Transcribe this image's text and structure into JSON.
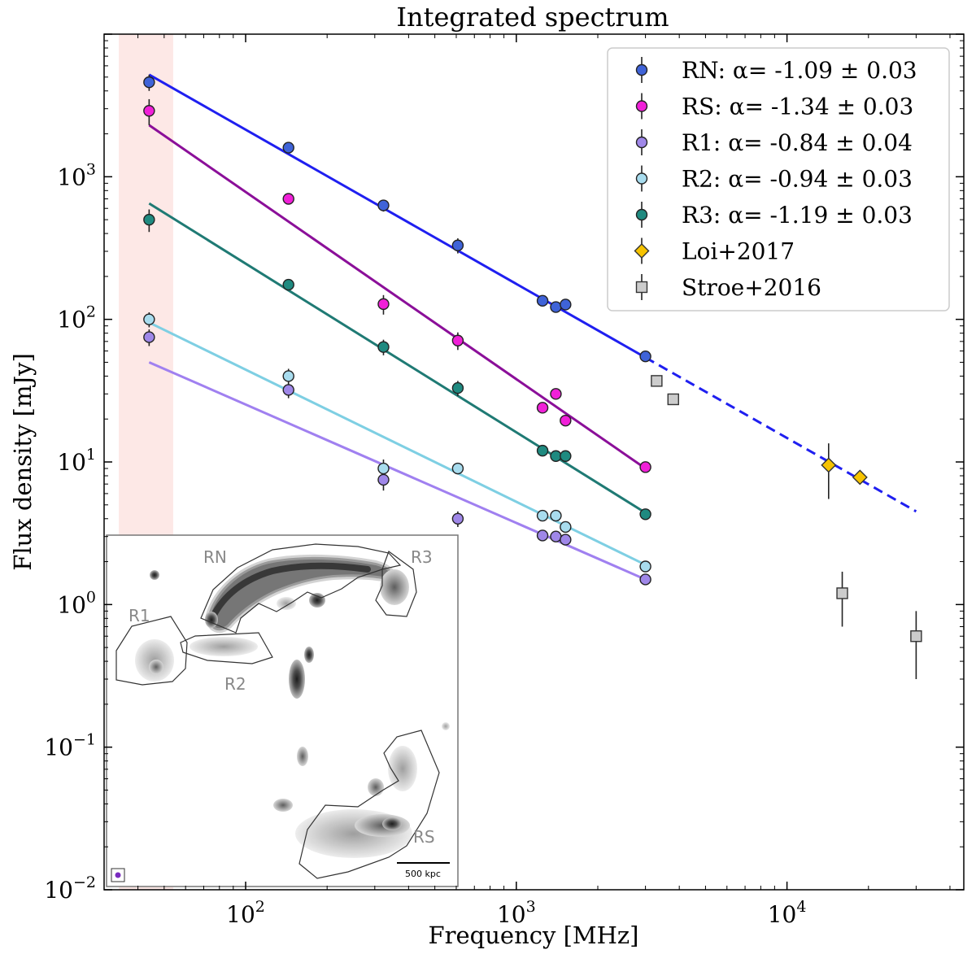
{
  "chart_data": {
    "type": "scatter",
    "title": "Integrated spectrum",
    "xlabel": "Frequency [MHz]",
    "ylabel": "Flux density [mJy]",
    "xscale": "log",
    "yscale": "log",
    "xlim": [
      30,
      45000
    ],
    "ylim": [
      0.01,
      10000
    ],
    "x_ticks": [
      {
        "value": 100,
        "base": "10",
        "exp": "2"
      },
      {
        "value": 1000,
        "base": "10",
        "exp": "3"
      },
      {
        "value": 10000,
        "base": "10",
        "exp": "4"
      }
    ],
    "y_ticks": [
      {
        "value": 0.01,
        "base": "10",
        "exp": "−2"
      },
      {
        "value": 0.1,
        "base": "10",
        "exp": "−1"
      },
      {
        "value": 1,
        "base": "10",
        "exp": "0"
      },
      {
        "value": 10,
        "base": "10",
        "exp": "1"
      },
      {
        "value": 100,
        "base": "10",
        "exp": "2"
      },
      {
        "value": 1000,
        "base": "10",
        "exp": "3"
      }
    ],
    "shaded_band": {
      "x_range": [
        34,
        54
      ],
      "color": "#fde8e6"
    },
    "legend_position": "upper-right",
    "series": [
      {
        "name": "RN: α= -1.09 ± 0.03",
        "marker": "circle",
        "color": "#3f63d8",
        "line_color": "#1f1ff0",
        "x": [
          44,
          144,
          323,
          608,
          1250,
          1400,
          1520,
          3000
        ],
        "y": [
          4600,
          1600,
          630,
          330,
          135,
          122,
          127,
          55
        ],
        "yerr": [
          600,
          120,
          60,
          40,
          8,
          8,
          8,
          4
        ],
        "fit": {
          "x": [
            44,
            3000
          ],
          "y": [
            5200,
            54
          ]
        },
        "fit_extension": {
          "x": [
            3000,
            30000
          ],
          "y": [
            54,
            4.5
          ],
          "style": "dashed"
        }
      },
      {
        "name": "RS: α= -1.34 ± 0.03",
        "marker": "circle",
        "color": "#f020d8",
        "line_color": "#8b0f99",
        "x": [
          44,
          144,
          323,
          608,
          1250,
          1400,
          1520,
          3000
        ],
        "y": [
          2900,
          700,
          128,
          71,
          24,
          30,
          19.5,
          9.2
        ],
        "yerr": [
          600,
          60,
          20,
          10,
          2,
          2,
          1.5,
          0.6
        ],
        "fit": {
          "x": [
            44,
            3000
          ],
          "y": [
            2300,
            9
          ]
        }
      },
      {
        "name": "R1: α= -0.84 ± 0.04",
        "marker": "circle",
        "color": "#9f87e8",
        "line_color": "#a080f0",
        "x": [
          44,
          144,
          323,
          608,
          1250,
          1400,
          1520,
          3000
        ],
        "y": [
          75,
          32,
          7.5,
          4.0,
          3.05,
          3.0,
          2.85,
          1.5
        ],
        "yerr": [
          10,
          4,
          1.2,
          0.5,
          0.2,
          0.2,
          0.2,
          0.1
        ],
        "fit": {
          "x": [
            44,
            3000
          ],
          "y": [
            50,
            1.5
          ]
        }
      },
      {
        "name": "R2: α= -0.94 ± 0.03",
        "marker": "circle",
        "color": "#a8dcee",
        "line_color": "#7ecfe3",
        "x": [
          44,
          144,
          323,
          608,
          1250,
          1400,
          1520,
          3000
        ],
        "y": [
          100,
          40,
          9.0,
          9.0,
          4.2,
          4.2,
          3.5,
          1.85
        ],
        "yerr": [
          12,
          5,
          1.4,
          0.8,
          0.3,
          0.3,
          0.3,
          0.1
        ],
        "fit": {
          "x": [
            44,
            3000
          ],
          "y": [
            95,
            1.9
          ]
        }
      },
      {
        "name": "R3: α= -1.19 ± 0.03",
        "marker": "circle",
        "color": "#1f8a80",
        "line_color": "#1f7a74",
        "x": [
          44,
          144,
          323,
          608,
          1250,
          1400,
          1520,
          3000
        ],
        "y": [
          500,
          175,
          64,
          33,
          12,
          11,
          11,
          4.3
        ],
        "yerr": [
          90,
          15,
          8,
          4,
          0.8,
          0.8,
          0.8,
          0.3
        ],
        "fit": {
          "x": [
            44,
            3000
          ],
          "y": [
            650,
            4.4
          ]
        }
      },
      {
        "name": "Loi+2017",
        "marker": "diamond",
        "color": "#f6c300",
        "x": [
          14250,
          18600
        ],
        "y": [
          9.5,
          7.8
        ],
        "yerr": [
          4,
          0.5
        ]
      },
      {
        "name": "Stroe+2016",
        "marker": "square",
        "color": "#cccccc",
        "x": [
          3300,
          3800,
          16000,
          30000
        ],
        "y": [
          37,
          27.5,
          1.2,
          0.6
        ],
        "yerr": [
          3,
          2,
          0.5,
          0.3
        ]
      }
    ]
  },
  "inset": {
    "labels": {
      "rn": "RN",
      "r3": "R3",
      "r1": "R1",
      "r2": "R2",
      "rs": "RS"
    },
    "scalebar_label": "500 kpc"
  }
}
